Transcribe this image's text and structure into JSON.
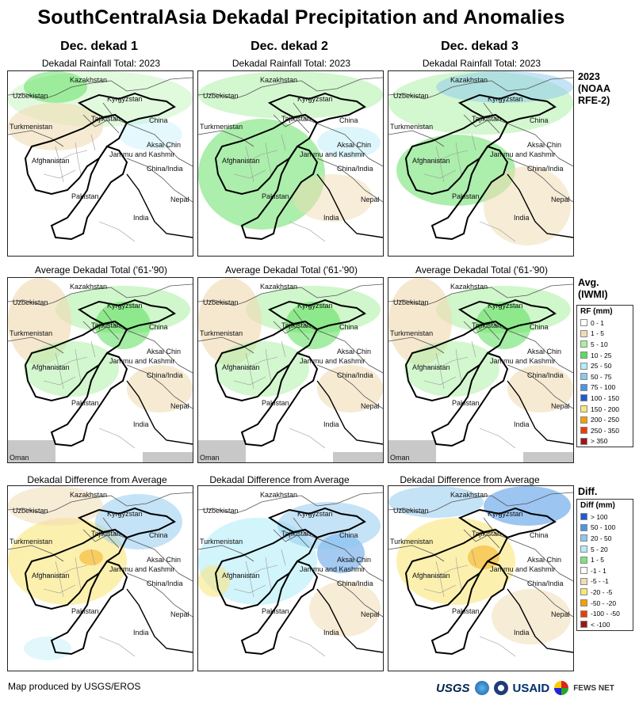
{
  "title": "SouthCentralAsia Dekadal Precipitation and Anomalies",
  "columns": [
    {
      "heading": "Dec. dekad 1"
    },
    {
      "heading": "Dec. dekad 2"
    },
    {
      "heading": "Dec. dekad 3"
    }
  ],
  "row_subtitles": {
    "rainfall": "Dekadal Rainfall Total: 2023",
    "average": "Average Dekadal Total ('61-'90)",
    "difference": "Dekadal Difference from Average"
  },
  "side_labels": {
    "row1": [
      "2023",
      "(NOAA",
      "RFE-2)"
    ],
    "row2": [
      "Avg.",
      "(IWMI)"
    ],
    "row3": [
      "Diff."
    ]
  },
  "map_labels": {
    "kazakhstan": "Kazakhstan",
    "uzbekistan": "Uzbekistan",
    "kyrgyzstan": "Kyrgyzstan",
    "turkmenistan": "Turkmenistan",
    "tajikistan": "Tajikistan",
    "china": "China",
    "aksai_chin": "Aksai Chin",
    "jammu_kashmir": "Jammu and Kashmir",
    "china_india": "China/India",
    "afghanistan": "Afghanistan",
    "pakistan": "Pakistan",
    "nepal": "Nepal",
    "india": "India",
    "oman": "Oman"
  },
  "rf_legend": {
    "title": "RF (mm)",
    "items": [
      {
        "label": "0 - 1",
        "color": "#ffffff"
      },
      {
        "label": "1 - 5",
        "color": "#f0dcb4"
      },
      {
        "label": "5 - 10",
        "color": "#a8f0a0"
      },
      {
        "label": "10 - 25",
        "color": "#5ade5a"
      },
      {
        "label": "25 - 50",
        "color": "#b4ecf8"
      },
      {
        "label": "50 - 75",
        "color": "#8cc8f0"
      },
      {
        "label": "75 - 100",
        "color": "#4a96e6"
      },
      {
        "label": "100 - 150",
        "color": "#1e5ad2"
      },
      {
        "label": "150 - 200",
        "color": "#fae678"
      },
      {
        "label": "200 - 250",
        "color": "#f5a000"
      },
      {
        "label": "250 - 350",
        "color": "#f03c00"
      },
      {
        "label": "> 350",
        "color": "#a01414"
      }
    ]
  },
  "diff_legend": {
    "title": "Diff (mm)",
    "items": [
      {
        "label": "> 100",
        "color": "#1e5ad2"
      },
      {
        "label": "50 - 100",
        "color": "#4a96e6"
      },
      {
        "label": "20 - 50",
        "color": "#8cc8f0"
      },
      {
        "label": "5 - 20",
        "color": "#b4ecf8"
      },
      {
        "label": "1 - 5",
        "color": "#7ce67c"
      },
      {
        "label": "-1 - 1",
        "color": "#ffffff"
      },
      {
        "label": "-5 - -1",
        "color": "#f0dcb4"
      },
      {
        "label": "-20 - -5",
        "color": "#fae678"
      },
      {
        "label": "-50 - -20",
        "color": "#f5a000"
      },
      {
        "label": "-100 - -50",
        "color": "#f03c00"
      },
      {
        "label": "< -100",
        "color": "#a01414"
      }
    ]
  },
  "footer": {
    "credit": "Map produced by USGS/EROS",
    "logos": [
      "USGS",
      "USAID",
      "FEWS NET"
    ]
  }
}
